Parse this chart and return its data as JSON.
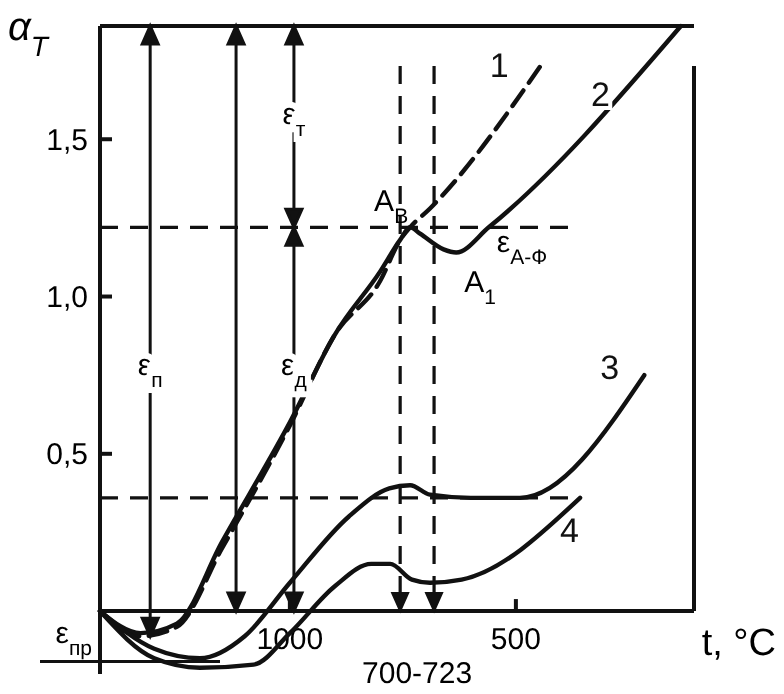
{
  "chart_data": {
    "type": "line",
    "xlabel": "t, °C",
    "ylabel": "α$_{T}$",
    "xlim": [
      1420,
      106
    ],
    "xticks": [
      1000,
      500
    ],
    "ylim": [
      -0.2,
      1.86
    ],
    "yticks": [
      {
        "value": 0.5,
        "label": "0,5"
      },
      {
        "value": 1.0,
        "label": "1,0"
      },
      {
        "value": 1.5,
        "label": "1,5"
      }
    ],
    "grid": false,
    "marker": "none",
    "series": [
      {
        "name": "1",
        "color": "#111111",
        "line_style": "dashed",
        "x": [
          1420,
          1330,
          1250,
          1150,
          1000,
          900,
          800,
          756,
          734,
          690,
          447
        ],
        "values": [
          0,
          -0.08,
          -0.05,
          0.2,
          0.59,
          0.88,
          1.05,
          1.18,
          1.22,
          1.28,
          1.73
        ]
      },
      {
        "name": "2",
        "color": "#111111",
        "line_style": "solid",
        "x": [
          1420,
          1330,
          1250,
          1150,
          1000,
          900,
          800,
          756,
          734,
          712,
          660,
          632,
          560,
          135
        ],
        "values": [
          0,
          -0.07,
          -0.04,
          0.22,
          0.6,
          0.88,
          1.08,
          1.18,
          1.22,
          1.2,
          1.15,
          1.14,
          1.22,
          1.86
        ]
      },
      {
        "name": "3",
        "color": "#111111",
        "line_style": "solid",
        "x": [
          1420,
          1300,
          1199,
          1100,
          1000,
          870,
          780,
          734,
          690,
          600,
          491,
          216
        ],
        "values": [
          0,
          -0.12,
          -0.15,
          -0.08,
          0.09,
          0.3,
          0.39,
          0.4,
          0.37,
          0.36,
          0.36,
          0.75
        ]
      },
      {
        "name": "4",
        "color": "#111111",
        "line_style": "solid",
        "x": [
          1420,
          1300,
          1199,
          1080,
          1000,
          900,
          820,
          778,
          730,
          690,
          620,
          358
        ],
        "values": [
          0,
          -0.15,
          -0.18,
          -0.17,
          -0.07,
          0.08,
          0.15,
          0.15,
          0.1,
          0.09,
          0.1,
          0.36
        ]
      }
    ],
    "ref_lines": [
      {
        "axis": "y",
        "value": 1.22,
        "line_style": "dashed"
      },
      {
        "axis": "y",
        "value": 0.36,
        "line_style": "dashed"
      },
      {
        "axis": "x",
        "value": 756,
        "line_style": "dashed"
      },
      {
        "axis": "x",
        "value": 681,
        "line_style": "dashed"
      },
      {
        "axis": "y",
        "value": -0.16,
        "label": "ε$_{пр}$",
        "line_style": "solid"
      }
    ],
    "annotations": [
      {
        "text": "A$_{B}$",
        "x": 734,
        "y": 1.22
      },
      {
        "text": "A$_{1}$",
        "x": 632,
        "y": 1.14
      },
      {
        "text": "ε$_{A-Ф}$",
        "x": 560,
        "y": 1.18
      },
      "ε$_{п}$",
      "ε$_{д}$",
      "ε$_{т}$",
      "700-723"
    ]
  }
}
